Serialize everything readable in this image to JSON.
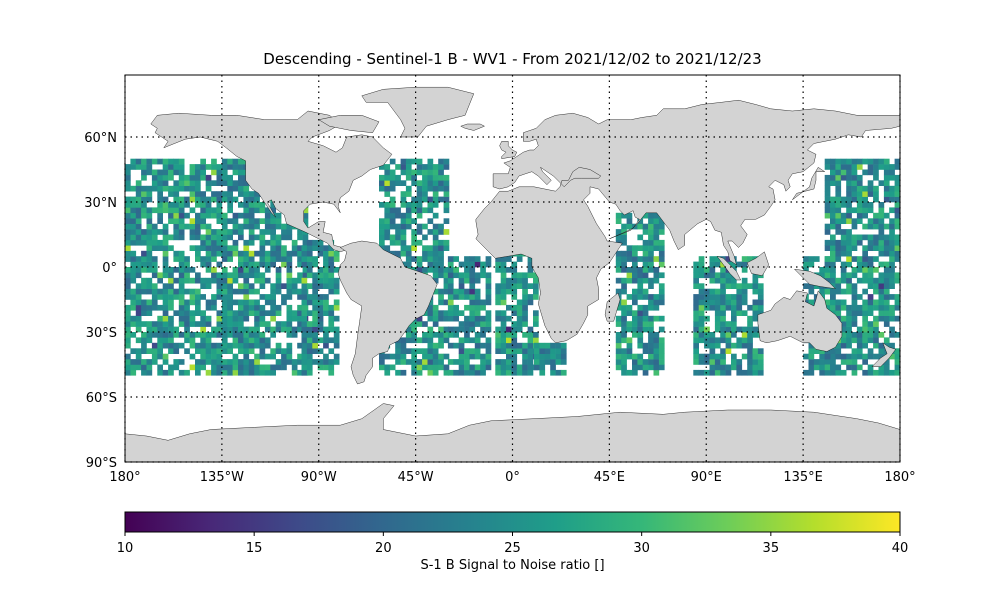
{
  "title": "Descending - Sentinel-1 B - WV1 - From 2021/12/02 to 2021/12/23",
  "map": {
    "lon_range": [
      -180,
      180
    ],
    "lat_range": [
      -90,
      90
    ],
    "land_color": "#d3d3d3",
    "ocean_color": "#ffffff",
    "grid_style": "dotted",
    "lon_ticks": [
      {
        "value": -180,
        "label": "180°"
      },
      {
        "value": -135,
        "label": "135°W"
      },
      {
        "value": -90,
        "label": "90°W"
      },
      {
        "value": -45,
        "label": "45°W"
      },
      {
        "value": 0,
        "label": "0°"
      },
      {
        "value": 45,
        "label": "45°E"
      },
      {
        "value": 90,
        "label": "90°E"
      },
      {
        "value": 135,
        "label": "135°E"
      },
      {
        "value": 180,
        "label": "180°"
      }
    ],
    "lat_ticks": [
      {
        "value": 60,
        "label": "60°N"
      },
      {
        "value": 30,
        "label": "30°N"
      },
      {
        "value": 0,
        "label": "0°"
      },
      {
        "value": -30,
        "label": "30°S"
      },
      {
        "value": -60,
        "label": "60°S"
      },
      {
        "value": -90,
        "label": "90°S"
      }
    ],
    "data_lat_range": [
      -50,
      50
    ],
    "coverage_regions": [
      {
        "lon": [
          -180,
          -96
        ],
        "lat": [
          -50,
          50
        ]
      },
      {
        "lon": [
          -98,
          -82
        ],
        "lat": [
          -50,
          12
        ]
      },
      {
        "lon": [
          -62,
          -30
        ],
        "lat": [
          -50,
          50
        ]
      },
      {
        "lon": [
          -30,
          -10
        ],
        "lat": [
          -50,
          5
        ]
      },
      {
        "lon": [
          -8,
          10
        ],
        "lat": [
          -50,
          6
        ]
      },
      {
        "lon": [
          10,
          25
        ],
        "lat": [
          -50,
          -35
        ]
      },
      {
        "lon": [
          48,
          70
        ],
        "lat": [
          -50,
          25
        ]
      },
      {
        "lon": [
          84,
          115
        ],
        "lat": [
          -50,
          4
        ]
      },
      {
        "lon": [
          135,
          150
        ],
        "lat": [
          -50,
          5
        ]
      },
      {
        "lon": [
          145,
          180
        ],
        "lat": [
          -50,
          50
        ]
      }
    ]
  },
  "colorbar": {
    "cmap": "viridis",
    "vmin": 10,
    "vmax": 40,
    "ticks": [
      10,
      15,
      20,
      25,
      30,
      35,
      40
    ],
    "label": "S-1 B Signal to Noise ratio []"
  }
}
